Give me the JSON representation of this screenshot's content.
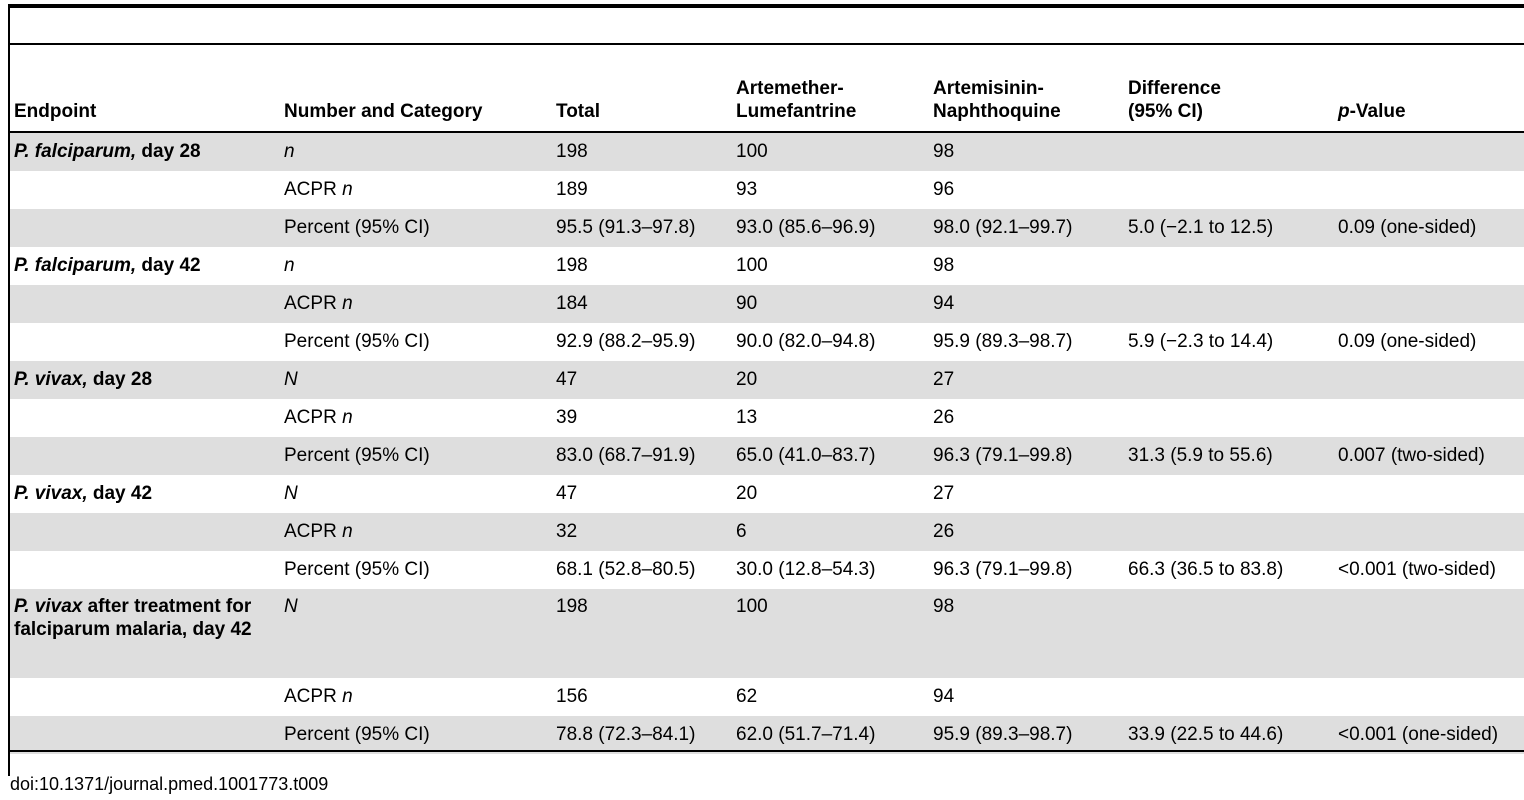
{
  "columns": [
    "Endpoint",
    "Number and Category",
    "Total",
    "Artemether-\nLumefantrine",
    "Artemisinin-\nNaphthoquine",
    "Difference\n(95% CI)",
    "p-Value"
  ],
  "header": {
    "endpoint": "Endpoint",
    "number_category": "Number and Category",
    "total": "Total",
    "al_line1": "Artemether-",
    "al_line2": "Lumefantrine",
    "an_line1": "Artemisinin-",
    "an_line2": "Naphthoquine",
    "diff_line1": "Difference",
    "diff_line2": "(95% CI)",
    "p_italic": "p",
    "p_rest": "-Value"
  },
  "rows": [
    {
      "endpoint_italic": "P. falciparum,",
      "endpoint_rest": " day 28",
      "category": "n",
      "category_italic": true,
      "total": "198",
      "al": "100",
      "an": "98",
      "diff": "",
      "p": "",
      "shade": true
    },
    {
      "endpoint_italic": "",
      "endpoint_rest": "",
      "category_prefix": "ACPR ",
      "category": "n",
      "category_italic": true,
      "total": "189",
      "al": "93",
      "an": "96",
      "diff": "",
      "p": "",
      "shade": false
    },
    {
      "endpoint_italic": "",
      "endpoint_rest": "",
      "category": "Percent (95% CI)",
      "category_italic": false,
      "total": "95.5 (91.3–97.8)",
      "al": "93.0 (85.6–96.9)",
      "an": "98.0 (92.1–99.7)",
      "diff": "5.0 (−2.1 to 12.5)",
      "p": "0.09 (one-sided)",
      "shade": true
    },
    {
      "endpoint_italic": "P. falciparum,",
      "endpoint_rest": " day 42",
      "category": "n",
      "category_italic": true,
      "total": "198",
      "al": "100",
      "an": "98",
      "diff": "",
      "p": "",
      "shade": false
    },
    {
      "endpoint_italic": "",
      "endpoint_rest": "",
      "category_prefix": "ACPR ",
      "category": "n",
      "category_italic": true,
      "total": "184",
      "al": "90",
      "an": "94",
      "diff": "",
      "p": "",
      "shade": true
    },
    {
      "endpoint_italic": "",
      "endpoint_rest": "",
      "category": "Percent (95% CI)",
      "category_italic": false,
      "total": "92.9 (88.2–95.9)",
      "al": "90.0 (82.0–94.8)",
      "an": "95.9 (89.3–98.7)",
      "diff": "5.9 (−2.3 to 14.4)",
      "p": "0.09 (one-sided)",
      "shade": false
    },
    {
      "endpoint_italic": "P. vivax,",
      "endpoint_rest": " day 28",
      "category": "N",
      "category_italic": true,
      "total": "47",
      "al": "20",
      "an": "27",
      "diff": "",
      "p": "",
      "shade": true
    },
    {
      "endpoint_italic": "",
      "endpoint_rest": "",
      "category_prefix": "ACPR ",
      "category": "n",
      "category_italic": true,
      "total": "39",
      "al": "13",
      "an": "26",
      "diff": "",
      "p": "",
      "shade": false
    },
    {
      "endpoint_italic": "",
      "endpoint_rest": "",
      "category": "Percent (95% CI)",
      "category_italic": false,
      "total": "83.0 (68.7–91.9)",
      "al": "65.0 (41.0–83.7)",
      "an": "96.3 (79.1–99.8)",
      "diff": "31.3 (5.9 to 55.6)",
      "p": "0.007 (two-sided)",
      "shade": true
    },
    {
      "endpoint_italic": "P. vivax,",
      "endpoint_rest": " day 42",
      "category": "N",
      "category_italic": true,
      "total": "47",
      "al": "20",
      "an": "27",
      "diff": "",
      "p": "",
      "shade": false
    },
    {
      "endpoint_italic": "",
      "endpoint_rest": "",
      "category_prefix": "ACPR ",
      "category": "n",
      "category_italic": true,
      "total": "32",
      "al": "6",
      "an": "26",
      "diff": "",
      "p": "",
      "shade": true
    },
    {
      "endpoint_italic": "",
      "endpoint_rest": "",
      "category": "Percent (95% CI)",
      "category_italic": false,
      "total": "68.1 (52.8–80.5)",
      "al": "30.0 (12.8–54.3)",
      "an": "96.3 (79.1–99.8)",
      "diff": "66.3 (36.5 to 83.8)",
      "p": "<0.001 (two-sided)",
      "shade": false
    },
    {
      "endpoint_italic": "P. vivax",
      "endpoint_rest": " after treatment for falciparum malaria, day 42",
      "category": "N",
      "category_italic": true,
      "total": "198",
      "al": "100",
      "an": "98",
      "diff": "",
      "p": "",
      "shade": true,
      "tall": true
    },
    {
      "endpoint_italic": "",
      "endpoint_rest": "",
      "category_prefix": "ACPR ",
      "category": "n",
      "category_italic": true,
      "total": "156",
      "al": "62",
      "an": "94",
      "diff": "",
      "p": "",
      "shade": false
    },
    {
      "endpoint_italic": "",
      "endpoint_rest": "",
      "category": "Percent (95% CI)",
      "category_italic": false,
      "total": "78.8 (72.3–84.1)",
      "al": "62.0 (51.7–71.4)",
      "an": "95.9 (89.3–98.7)",
      "diff": "33.9 (22.5 to 44.6)",
      "p": "<0.001 (one-sided)",
      "shade": true
    }
  ],
  "footer": "doi:10.1371/journal.pmed.1001773.t009",
  "colors": {
    "shade": "#dedede",
    "rule": "#000000"
  }
}
